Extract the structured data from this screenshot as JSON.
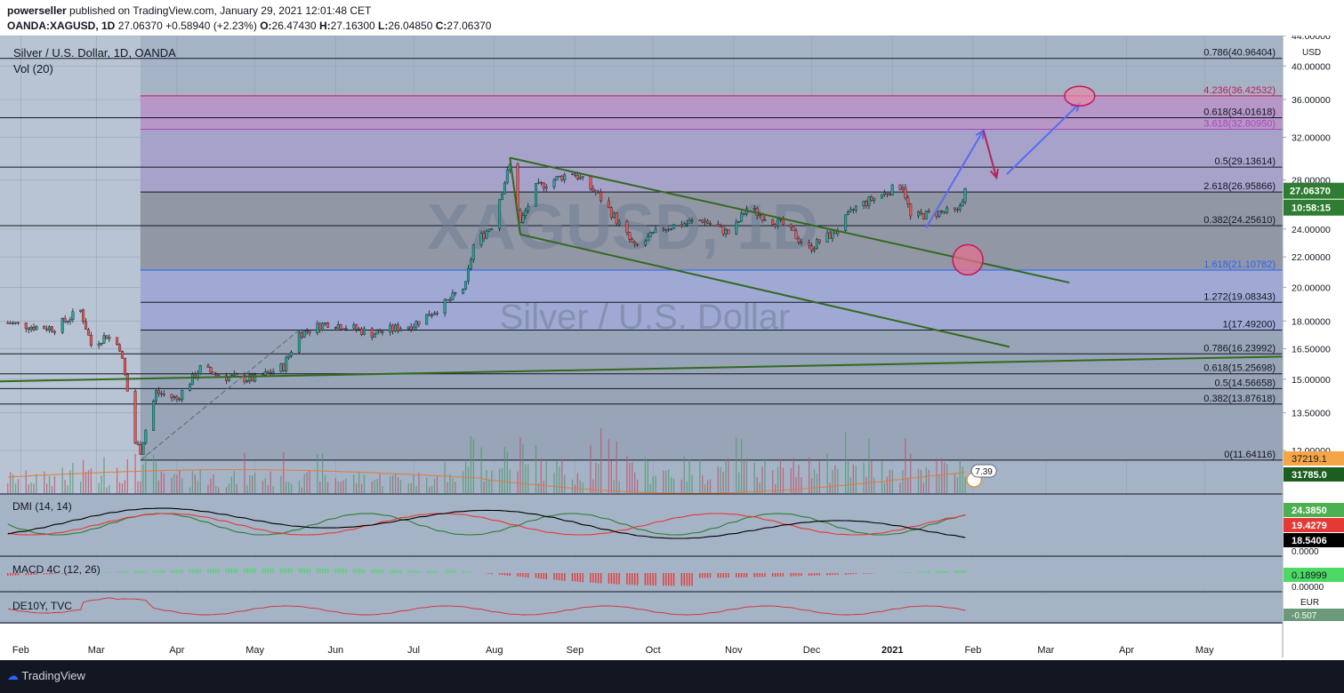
{
  "header": {
    "publisher_user": "powerseller",
    "publisher_rest": "published on TradingView.com, January 29, 2021 12:01:48 CET",
    "symbol": "OANDA:XAGUSD, 1D",
    "last": "27.06370",
    "change": "+0.58940 (+2.23%)",
    "o_label": "O:",
    "o": "26.47430",
    "h_label": "H:",
    "h": "27.16300",
    "l_label": "L:",
    "l": "26.04850",
    "c_label": "C:",
    "c": "27.06370"
  },
  "chart_title": "Silver / U.S. Dollar, 1D, OANDA",
  "vol_label": "Vol (20)",
  "watermark": {
    "line1": "XAGUSD, 1D",
    "line2": "Silver / U.S. Dollar"
  },
  "currency": "USD",
  "price_badge": "27.06370",
  "countdown_badge": "10:58:15",
  "vol_badges": [
    "37219.1",
    "31785.0"
  ],
  "event_label": "7.39",
  "indicators": {
    "dmi": {
      "label": "DMI (14, 14)",
      "values": [
        "24.3850",
        "19.4279",
        "18.5406"
      ],
      "zero": "0.0000",
      "colors": [
        "#2e7d32",
        "#e53935",
        "#000000"
      ]
    },
    "macd": {
      "label": "MACD 4C (12, 26)",
      "value": "0.18999",
      "zero": "0.00000"
    },
    "de10y": {
      "label": "DE10Y, TVC",
      "currency": "EUR",
      "value": "-0.507"
    }
  },
  "footer": {
    "brand": "TradingView"
  },
  "chart_data": {
    "type": "candlestick",
    "title": "Silver / U.S. Dollar, 1D, OANDA",
    "ylim": [
      10.5,
      44.0
    ],
    "y_scale": "log",
    "y_ticks": [
      "44.00000",
      "40.00000",
      "36.00000",
      "32.00000",
      "28.00000",
      "24.00000",
      "22.00000",
      "20.00000",
      "18.00000",
      "16.50000",
      "15.00000",
      "13.50000",
      "12.00000"
    ],
    "x_ticks": [
      "Feb",
      "Mar",
      "Apr",
      "May",
      "Jun",
      "Jul",
      "Aug",
      "Sep",
      "Oct",
      "Nov",
      "Dec",
      "2021",
      "Feb",
      "Mar",
      "Apr",
      "May"
    ],
    "price_path": [
      [
        "2020-01-27",
        17.9
      ],
      [
        "2020-02-05",
        17.7
      ],
      [
        "2020-02-14",
        17.6
      ],
      [
        "2020-02-20",
        18.2
      ],
      [
        "2020-02-24",
        18.6
      ],
      [
        "2020-02-28",
        16.7
      ],
      [
        "2020-03-05",
        17.2
      ],
      [
        "2020-03-10",
        16.6
      ],
      [
        "2020-03-16",
        12.3
      ],
      [
        "2020-03-18",
        12.0
      ],
      [
        "2020-03-24",
        14.4
      ],
      [
        "2020-04-01",
        14.1
      ],
      [
        "2020-04-10",
        15.5
      ],
      [
        "2020-04-20",
        15.1
      ],
      [
        "2020-05-01",
        15.0
      ],
      [
        "2020-05-12",
        15.6
      ],
      [
        "2020-05-18",
        17.3
      ],
      [
        "2020-05-29",
        17.9
      ],
      [
        "2020-06-05",
        17.7
      ],
      [
        "2020-06-15",
        17.3
      ],
      [
        "2020-07-01",
        17.8
      ],
      [
        "2020-07-14",
        19.1
      ],
      [
        "2020-07-21",
        20.1
      ],
      [
        "2020-07-24",
        22.8
      ],
      [
        "2020-07-31",
        24.3
      ],
      [
        "2020-08-07",
        29.3
      ],
      [
        "2020-08-11",
        24.4
      ],
      [
        "2020-08-17",
        27.3
      ],
      [
        "2020-08-31",
        28.7
      ],
      [
        "2020-09-10",
        26.7
      ],
      [
        "2020-09-21",
        23.5
      ],
      [
        "2020-09-24",
        22.6
      ],
      [
        "2020-10-05",
        24.1
      ],
      [
        "2020-10-20",
        24.7
      ],
      [
        "2020-10-31",
        23.6
      ],
      [
        "2020-11-06",
        25.6
      ],
      [
        "2020-11-20",
        24.3
      ],
      [
        "2020-11-30",
        22.6
      ],
      [
        "2020-12-10",
        23.8
      ],
      [
        "2020-12-18",
        25.7
      ],
      [
        "2021-01-05",
        27.6
      ],
      [
        "2021-01-08",
        24.9
      ],
      [
        "2021-01-19",
        25.3
      ],
      [
        "2021-01-26",
        25.3
      ],
      [
        "2021-01-29",
        27.06
      ]
    ],
    "volume_avg_label": "37219.1",
    "volume_last": "31785.0",
    "fibonacci_retracement": [
      {
        "ratio": "0.786",
        "value": 40.96404
      },
      {
        "ratio": "0.618",
        "value": 34.01618
      },
      {
        "ratio": "0.5",
        "value": 29.13614
      },
      {
        "ratio": "0.382",
        "value": 24.2561
      },
      {
        "ratio": "0.786",
        "value": 16.23992
      },
      {
        "ratio": "0.618",
        "value": 15.25698
      },
      {
        "ratio": "0.5",
        "value": 14.56658
      },
      {
        "ratio": "0.382",
        "value": 13.87618
      },
      {
        "ratio": "0",
        "value": 11.64116
      }
    ],
    "fibonacci_extension": [
      {
        "ratio": "4.236",
        "value": 36.42532,
        "color": "#c2185b"
      },
      {
        "ratio": "3.618",
        "value": 32.8095,
        "color": "#ab47bc"
      },
      {
        "ratio": "2.618",
        "value": 26.95866,
        "color": "#131722"
      },
      {
        "ratio": "1.618",
        "value": 21.10782,
        "color": "#2962ff"
      },
      {
        "ratio": "1.272",
        "value": 19.08343,
        "color": "#131722"
      },
      {
        "ratio": "1",
        "value": 17.492,
        "color": "#131722"
      }
    ],
    "level_labels": [
      {
        "text": "0.786(40.96404)",
        "value": 40.96404,
        "color": "#131722"
      },
      {
        "text": "4.236(36.42532)",
        "value": 36.42532,
        "color": "#c2185b"
      },
      {
        "text": "0.618(34.01618)",
        "value": 34.01618,
        "color": "#131722"
      },
      {
        "text": "3.618(32.80950)",
        "value": 32.8095,
        "color": "#ab47bc"
      },
      {
        "text": "0.5(29.13614)",
        "value": 29.13614,
        "color": "#131722"
      },
      {
        "text": "2.618(26.95866)",
        "value": 26.95866,
        "color": "#131722"
      },
      {
        "text": "0.382(24.25610)",
        "value": 24.2561,
        "color": "#131722"
      },
      {
        "text": "1.618(21.10782)",
        "value": 21.10782,
        "color": "#2962ff"
      },
      {
        "text": "1.272(19.08343)",
        "value": 19.08343,
        "color": "#131722"
      },
      {
        "text": "1(17.49200)",
        "value": 17.492,
        "color": "#131722"
      },
      {
        "text": "0.786(16.23992)",
        "value": 16.23992,
        "color": "#131722"
      },
      {
        "text": "0.618(15.25698)",
        "value": 15.25698,
        "color": "#131722"
      },
      {
        "text": "0.5(14.56658)",
        "value": 14.56658,
        "color": "#131722"
      },
      {
        "text": "0.382(13.87618)",
        "value": 13.87618,
        "color": "#131722"
      },
      {
        "text": "0(11.64116)",
        "value": 11.64116,
        "color": "#131722"
      }
    ],
    "channel": {
      "upper": [
        [
          "2020-08-07",
          30.0
        ],
        [
          "2021-03-10",
          20.3
        ]
      ],
      "lower": [
        [
          "2020-08-11",
          23.6
        ],
        [
          "2021-02-15",
          16.6
        ]
      ]
    },
    "support_line": [
      [
        "2020-01-24",
        14.9
      ],
      [
        "2021-05-31",
        16.1
      ]
    ],
    "projection_arrows": [
      [
        [
          "2021-01-14",
          24.1
        ],
        [
          "2021-02-05",
          32.7
        ]
      ],
      [
        [
          "2021-02-05",
          32.7
        ],
        [
          "2021-02-10",
          28.2
        ]
      ],
      [
        [
          "2021-02-14",
          28.5
        ],
        [
          "2021-03-14",
          35.6
        ]
      ]
    ],
    "target_circles": [
      [
        "2021-03-14",
        36.4
      ],
      [
        "2021-01-30",
        21.8
      ]
    ],
    "colors": {
      "bull": "#26a69a",
      "bear": "#ef5350",
      "fib_band": "#7b61ff",
      "fib_grey": "#6b7280",
      "channel": "#33691e"
    }
  }
}
